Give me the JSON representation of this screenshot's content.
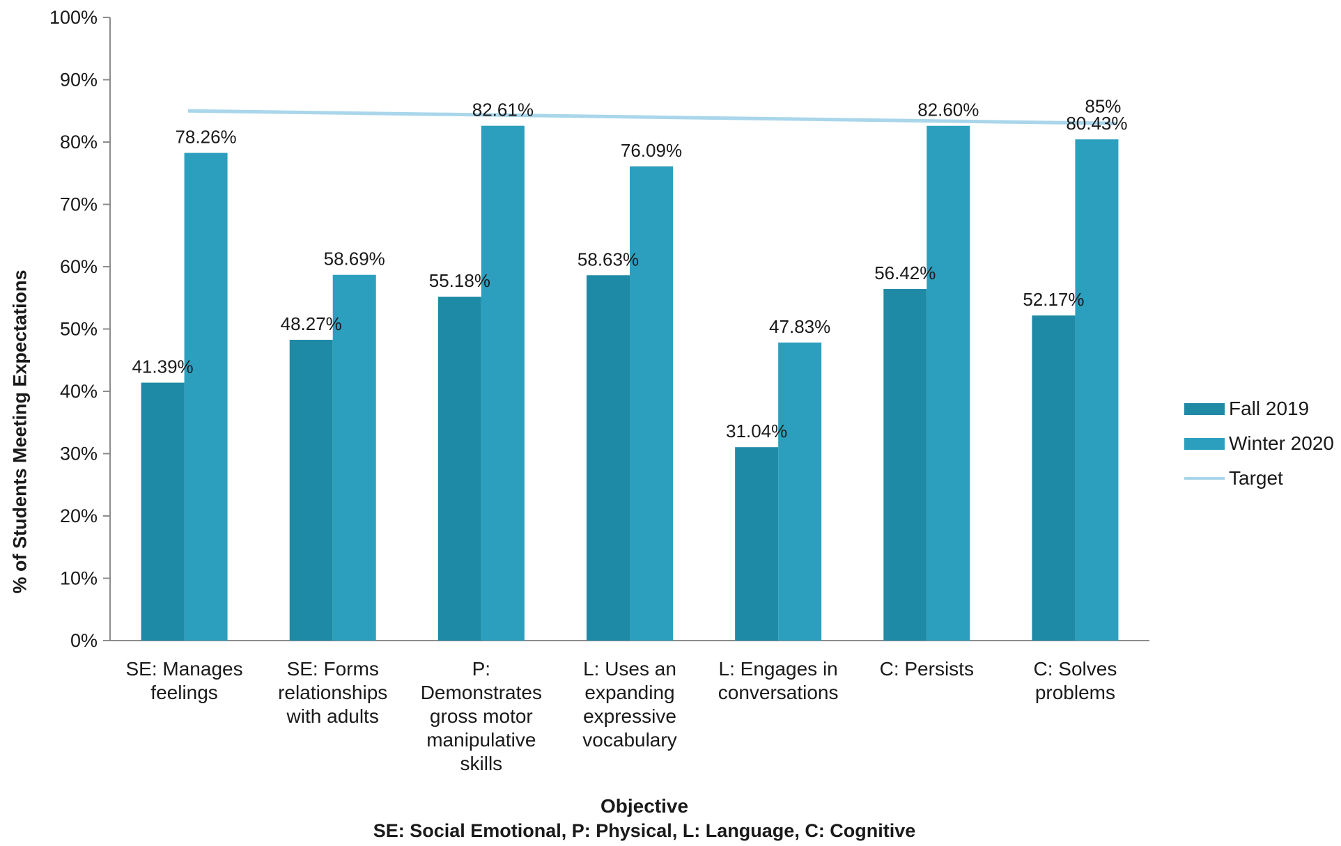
{
  "chart_data": {
    "type": "bar",
    "categories": [
      "SE: Manages\nfeelings",
      "SE: Forms\nrelationships\nwith adults",
      "P:\nDemonstrates\ngross motor\nmanipulative\nskills",
      "L: Uses an\nexpanding\nexpressive\nvocabulary",
      "L: Engages in\nconversations",
      "C: Persists",
      "C: Solves\nproblems"
    ],
    "series": [
      {
        "name": "Fall 2019",
        "values": [
          41.39,
          48.27,
          55.18,
          58.63,
          31.04,
          56.42,
          52.17
        ],
        "labels": [
          "41.39%",
          "48.27%",
          "55.18%",
          "58.63%",
          "31.04%",
          "56.42%",
          "52.17%"
        ],
        "color": "#1f8aa6"
      },
      {
        "name": "Winter 2020",
        "values": [
          78.26,
          58.69,
          82.61,
          76.09,
          47.83,
          82.6,
          80.43
        ],
        "labels": [
          "78.26%",
          "58.69%",
          "82.61%",
          "76.09%",
          "47.83%",
          "82.60%",
          "80.43%"
        ],
        "color": "#2c9fbe"
      }
    ],
    "target": {
      "name": "Target",
      "value": 85,
      "label": "85%",
      "color": "#a9d6ea"
    },
    "ylabel": "% of Students Meeting Expectations",
    "xlabel": "Objective",
    "xlabel_note": "SE: Social Emotional, P: Physical, L: Language, C: Cognitive",
    "ylim": [
      0,
      100
    ],
    "yticks": [
      "0%",
      "10%",
      "20%",
      "30%",
      "40%",
      "50%",
      "60%",
      "70%",
      "80%",
      "90%",
      "100%"
    ],
    "grid": false,
    "legend_position": "right"
  }
}
